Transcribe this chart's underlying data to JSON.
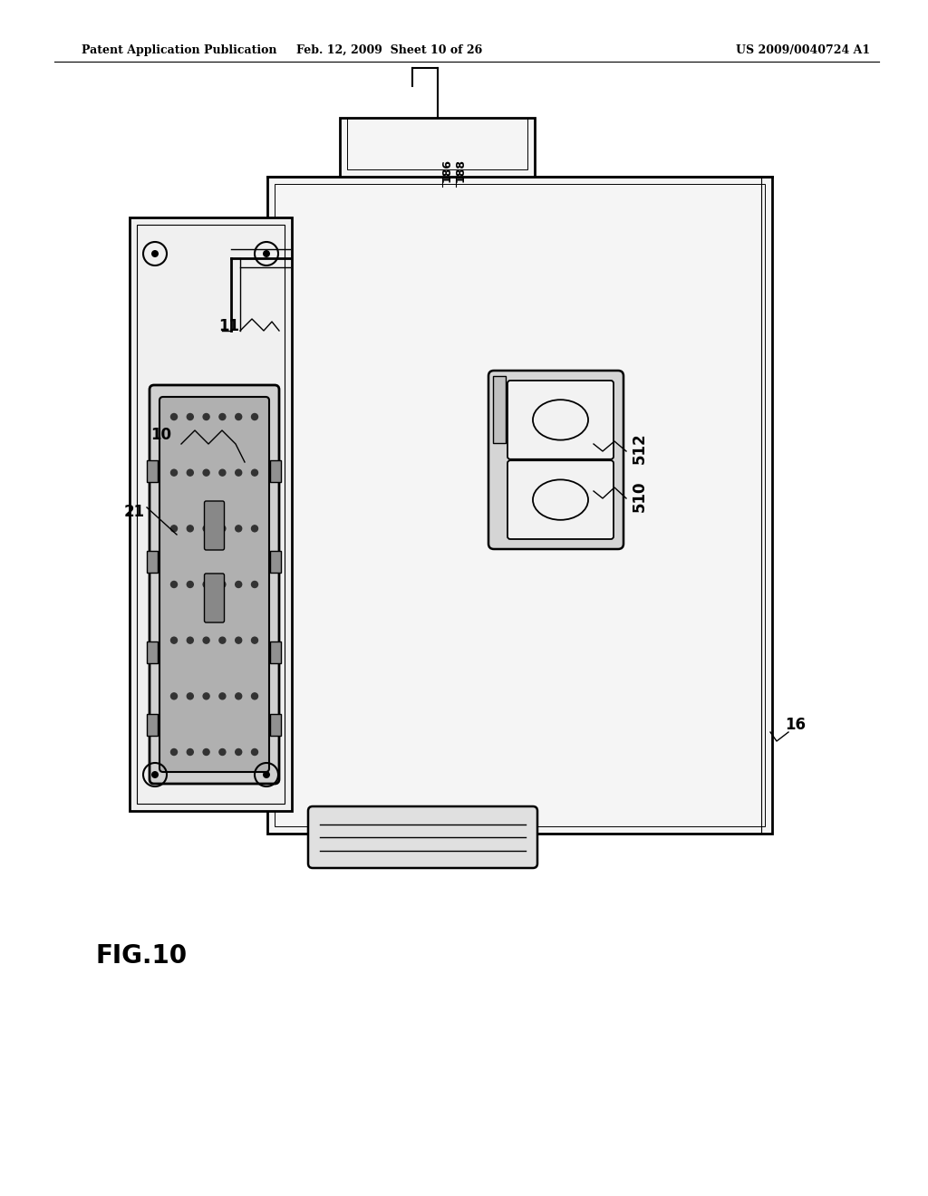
{
  "bg_color": "#ffffff",
  "header_left": "Patent Application Publication",
  "header_mid": "Feb. 12, 2009  Sheet 10 of 26",
  "header_right": "US 2009/0040724 A1",
  "fig_label": "FIG.10",
  "lc": "#000000",
  "lw": 1.5,
  "gray_light": "#e8e8e8",
  "gray_mid": "#c8c8c8",
  "gray_dark": "#a0a0a0"
}
